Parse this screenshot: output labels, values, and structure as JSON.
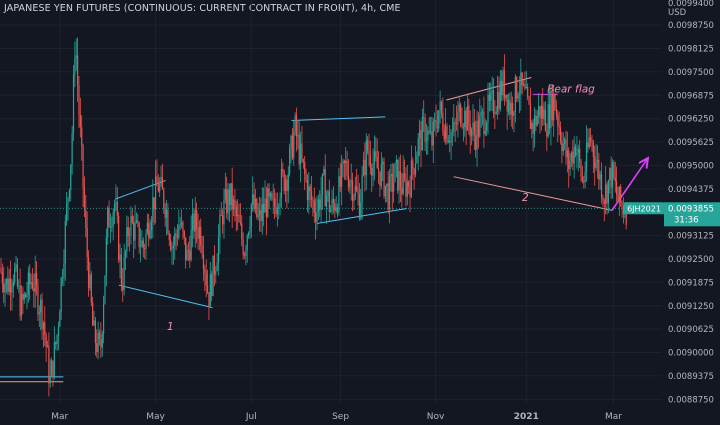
{
  "chart_data": {
    "type": "candlestick",
    "title": "JAPANESE YEN FUTURES (CONTINUOUS: CURRENT CONTRACT IN FRONT), 4h, CME",
    "currency": "USD",
    "y_ticks": [
      "0.0098750",
      "0.0098125",
      "0.0097500",
      "0.0096875",
      "0.0096250",
      "0.0095625",
      "0.0095000",
      "0.0094375",
      "0.0093125",
      "0.0092500",
      "0.0091875",
      "0.0091250",
      "0.0090625",
      "0.0090000",
      "0.0089375",
      "0.0088750"
    ],
    "y_tick_values": [
      0.009875,
      0.0098125,
      0.00975,
      0.0096875,
      0.009625,
      0.0095625,
      0.0095,
      0.0094375,
      0.0093125,
      0.00925,
      0.0091875,
      0.009125,
      0.0090625,
      0.009,
      0.0089375,
      0.008875
    ],
    "top_tick_partial": "0.0099400",
    "ylim": [
      0.0088625,
      0.0099422
    ],
    "x_ticks": [
      "Mar",
      "May",
      "Jul",
      "Sep",
      "Nov",
      "2021",
      "Mar"
    ],
    "x_tick_positions": [
      0.083,
      0.216,
      0.349,
      0.473,
      0.605,
      0.731,
      0.852
    ],
    "last_price": {
      "symbol": "6JH2021",
      "value": "0.0093855",
      "value_num": 0.0093855,
      "countdown": "31:36"
    },
    "price_series": [
      [
        0.0,
        0.009225
      ],
      [
        0.01,
        0.00918
      ],
      [
        0.02,
        0.00922
      ],
      [
        0.03,
        0.00912
      ],
      [
        0.045,
        0.0092
      ],
      [
        0.06,
        0.0091
      ],
      [
        0.07,
        0.00892
      ],
      [
        0.08,
        0.00905
      ],
      [
        0.09,
        0.0093
      ],
      [
        0.1,
        0.00955
      ],
      [
        0.105,
        0.00985
      ],
      [
        0.11,
        0.00965
      ],
      [
        0.12,
        0.0093
      ],
      [
        0.13,
        0.00905
      ],
      [
        0.14,
        0.009
      ],
      [
        0.15,
        0.00935
      ],
      [
        0.16,
        0.0094
      ],
      [
        0.17,
        0.00918
      ],
      [
        0.18,
        0.00935
      ],
      [
        0.19,
        0.00932
      ],
      [
        0.2,
        0.00928
      ],
      [
        0.21,
        0.00938
      ],
      [
        0.22,
        0.00945
      ],
      [
        0.23,
        0.0094
      ],
      [
        0.24,
        0.00928
      ],
      [
        0.25,
        0.00935
      ],
      [
        0.26,
        0.00925
      ],
      [
        0.27,
        0.00935
      ],
      [
        0.28,
        0.00932
      ],
      [
        0.29,
        0.00915
      ],
      [
        0.3,
        0.00925
      ],
      [
        0.31,
        0.00938
      ],
      [
        0.32,
        0.00942
      ],
      [
        0.33,
        0.00935
      ],
      [
        0.34,
        0.00928
      ],
      [
        0.35,
        0.0094
      ],
      [
        0.36,
        0.00935
      ],
      [
        0.37,
        0.0094
      ],
      [
        0.38,
        0.00938
      ],
      [
        0.39,
        0.00945
      ],
      [
        0.4,
        0.00948
      ],
      [
        0.41,
        0.0096
      ],
      [
        0.42,
        0.0095
      ],
      [
        0.43,
        0.00942
      ],
      [
        0.44,
        0.00938
      ],
      [
        0.45,
        0.00945
      ],
      [
        0.46,
        0.00938
      ],
      [
        0.47,
        0.00942
      ],
      [
        0.48,
        0.0095
      ],
      [
        0.49,
        0.00945
      ],
      [
        0.5,
        0.0094
      ],
      [
        0.51,
        0.00955
      ],
      [
        0.52,
        0.0095
      ],
      [
        0.53,
        0.00948
      ],
      [
        0.54,
        0.00942
      ],
      [
        0.55,
        0.00948
      ],
      [
        0.56,
        0.00944
      ],
      [
        0.57,
        0.00946
      ],
      [
        0.58,
        0.00955
      ],
      [
        0.59,
        0.0096
      ],
      [
        0.6,
        0.00956
      ],
      [
        0.61,
        0.00965
      ],
      [
        0.62,
        0.0096
      ],
      [
        0.63,
        0.00958
      ],
      [
        0.64,
        0.00965
      ],
      [
        0.65,
        0.00962
      ],
      [
        0.66,
        0.00958
      ],
      [
        0.67,
        0.00962
      ],
      [
        0.68,
        0.00965
      ],
      [
        0.69,
        0.00968
      ],
      [
        0.7,
        0.00972
      ],
      [
        0.71,
        0.00965
      ],
      [
        0.72,
        0.00972
      ],
      [
        0.73,
        0.00968
      ],
      [
        0.74,
        0.0096
      ],
      [
        0.75,
        0.00965
      ],
      [
        0.76,
        0.00962
      ],
      [
        0.77,
        0.00968
      ],
      [
        0.78,
        0.00958
      ],
      [
        0.79,
        0.0095
      ],
      [
        0.8,
        0.00956
      ],
      [
        0.81,
        0.00945
      ],
      [
        0.82,
        0.00958
      ],
      [
        0.83,
        0.0095
      ],
      [
        0.84,
        0.00942
      ],
      [
        0.85,
        0.00948
      ],
      [
        0.86,
        0.0094
      ],
      [
        0.87,
        0.009385
      ]
    ],
    "drawings": [
      {
        "type": "line",
        "color": "#4fc3f7",
        "from": [
          0.0,
          0.008935
        ],
        "to": [
          0.088,
          0.008935
        ]
      },
      {
        "type": "line",
        "color": "#ef9a9a",
        "from": [
          0.0,
          0.008922
        ],
        "to": [
          0.088,
          0.008922
        ]
      },
      {
        "type": "line",
        "color": "#4fc3f7",
        "from": [
          0.16,
          0.00941
        ],
        "to": [
          0.23,
          0.00946
        ]
      },
      {
        "type": "line",
        "color": "#4fc3f7",
        "from": [
          0.165,
          0.00918
        ],
        "to": [
          0.295,
          0.00912
        ]
      },
      {
        "type": "line",
        "color": "#4fc3f7",
        "from": [
          0.405,
          0.00962
        ],
        "to": [
          0.535,
          0.00963
        ]
      },
      {
        "type": "line",
        "color": "#4fc3f7",
        "from": [
          0.44,
          0.009345
        ],
        "to": [
          0.565,
          0.009385
        ]
      },
      {
        "type": "line",
        "color": "#ef9a9a",
        "from": [
          0.62,
          0.009675
        ],
        "to": [
          0.738,
          0.009735
        ]
      },
      {
        "type": "line",
        "color": "#ef9a9a",
        "from": [
          0.63,
          0.00947
        ],
        "to": [
          0.85,
          0.00938
        ]
      },
      {
        "type": "line",
        "color": "#e040fb",
        "from": [
          0.85,
          0.00938
        ],
        "to": [
          0.9,
          0.00952
        ],
        "arrow": true
      },
      {
        "type": "line",
        "color": "#e040fb",
        "from": [
          0.74,
          0.00969
        ],
        "to": [
          0.775,
          0.00969
        ]
      }
    ],
    "annotations": [
      {
        "text": "1",
        "color": "#f48fb1",
        "x": 0.232,
        "y": 0.00906
      },
      {
        "text": "2",
        "color": "#f48fb1",
        "x": 0.725,
        "y": 0.009405
      },
      {
        "text": "Bear flag",
        "color": "#f48fb1",
        "x": 0.76,
        "y": 0.009695
      }
    ]
  }
}
